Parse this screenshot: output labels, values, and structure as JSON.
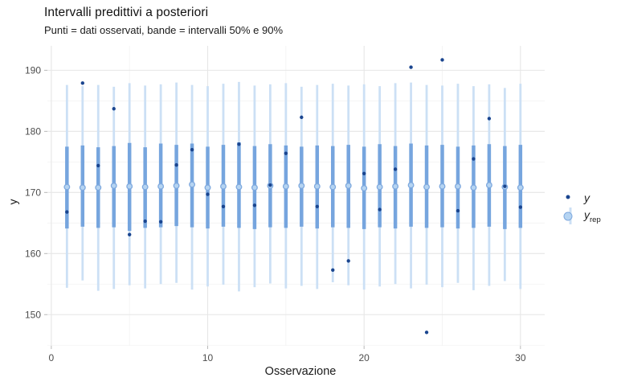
{
  "chart": {
    "title": "Intervalli predittivi a posteriori",
    "subtitle": "Punti = dati osservati, bande = intervalli 50% e 90%",
    "xlabel": "Osservazione",
    "ylabel": "y",
    "legend": {
      "y_label": "y",
      "yrep_base": "y",
      "yrep_sub": "rep"
    }
  },
  "chart_data": {
    "type": "intervals",
    "title": "Intervalli predittivi a posteriori",
    "subtitle": "Punti = dati osservati, bande = intervalli 50% e 90%",
    "xlabel": "Osservazione",
    "ylabel": "y",
    "legend_entries": [
      "y",
      "y_rep"
    ],
    "legend_position": "right",
    "grid": true,
    "xlim": [
      -0.25,
      31.55
    ],
    "ylim": [
      144.9,
      194.0
    ],
    "xticks": [
      0,
      10,
      20,
      30
    ],
    "xminor": [
      5,
      15,
      25
    ],
    "yticks": [
      150,
      160,
      170,
      180,
      190
    ],
    "yminor": [
      145,
      155,
      165,
      175,
      185
    ],
    "x": [
      1,
      2,
      3,
      4,
      5,
      6,
      7,
      8,
      9,
      10,
      11,
      12,
      13,
      14,
      15,
      16,
      17,
      18,
      19,
      20,
      21,
      22,
      23,
      24,
      25,
      26,
      27,
      28,
      29,
      30
    ],
    "y_obs": [
      166.8,
      187.9,
      174.4,
      183.7,
      163.1,
      165.3,
      165.2,
      174.5,
      177.0,
      169.7,
      167.7,
      177.9,
      167.9,
      171.2,
      176.4,
      182.3,
      167.7,
      157.3,
      158.8,
      173.1,
      167.2,
      173.8,
      190.5,
      147.1,
      191.7,
      167.0,
      175.5,
      182.1,
      171.0,
      167.6
    ],
    "median": [
      170.9,
      170.8,
      170.8,
      171.1,
      171.0,
      170.9,
      171.0,
      171.1,
      171.3,
      170.8,
      171.0,
      170.9,
      170.8,
      171.1,
      171.0,
      171.1,
      171.0,
      170.9,
      171.1,
      170.7,
      170.9,
      171.0,
      171.2,
      170.9,
      171.0,
      171.0,
      170.8,
      171.2,
      170.9,
      170.8
    ],
    "lo50": [
      164.1,
      164.4,
      164.2,
      164.3,
      163.7,
      164.2,
      164.3,
      164.5,
      164.3,
      164.1,
      164.4,
      164.2,
      164.0,
      164.3,
      164.2,
      164.4,
      164.1,
      164.3,
      164.2,
      164.0,
      164.3,
      164.1,
      164.4,
      164.2,
      164.3,
      164.1,
      164.2,
      164.4,
      164.0,
      164.2
    ],
    "hi50": [
      177.5,
      177.7,
      177.4,
      177.6,
      178.1,
      177.4,
      178.0,
      177.8,
      178.0,
      177.5,
      177.8,
      178.2,
      177.6,
      177.9,
      177.7,
      177.5,
      177.7,
      177.6,
      177.8,
      177.5,
      177.9,
      177.6,
      178.0,
      177.7,
      177.8,
      177.5,
      177.7,
      177.9,
      177.6,
      177.8
    ],
    "lo90": [
      154.4,
      155.6,
      153.9,
      154.2,
      154.8,
      154.3,
      155.0,
      155.2,
      154.1,
      154.6,
      154.9,
      153.8,
      154.5,
      155.1,
      154.3,
      154.7,
      154.2,
      155.3,
      154.8,
      154.1,
      154.6,
      155.0,
      154.3,
      154.9,
      154.5,
      155.2,
      154.0,
      154.7,
      155.5,
      154.2
    ],
    "hi90": [
      187.6,
      187.4,
      187.6,
      187.3,
      187.9,
      187.5,
      187.7,
      188.0,
      187.6,
      187.4,
      187.8,
      188.1,
      187.5,
      187.7,
      187.9,
      187.3,
      187.6,
      187.8,
      187.5,
      187.7,
      187.4,
      187.9,
      188.0,
      187.6,
      187.5,
      187.8,
      187.4,
      187.7,
      187.1,
      187.8
    ],
    "colors": {
      "observed_point": "#1A458F",
      "outer_band": "#CCE0F5",
      "inner_band": "#76A5DE",
      "median_fill": "#B5D4F2",
      "median_stroke": "#7FA9DE",
      "grid_major": "#E6E6E6",
      "grid_minor": "#F2F2F2",
      "tick": "#B8B8B8",
      "axis_text": "#4D4D4D"
    }
  }
}
